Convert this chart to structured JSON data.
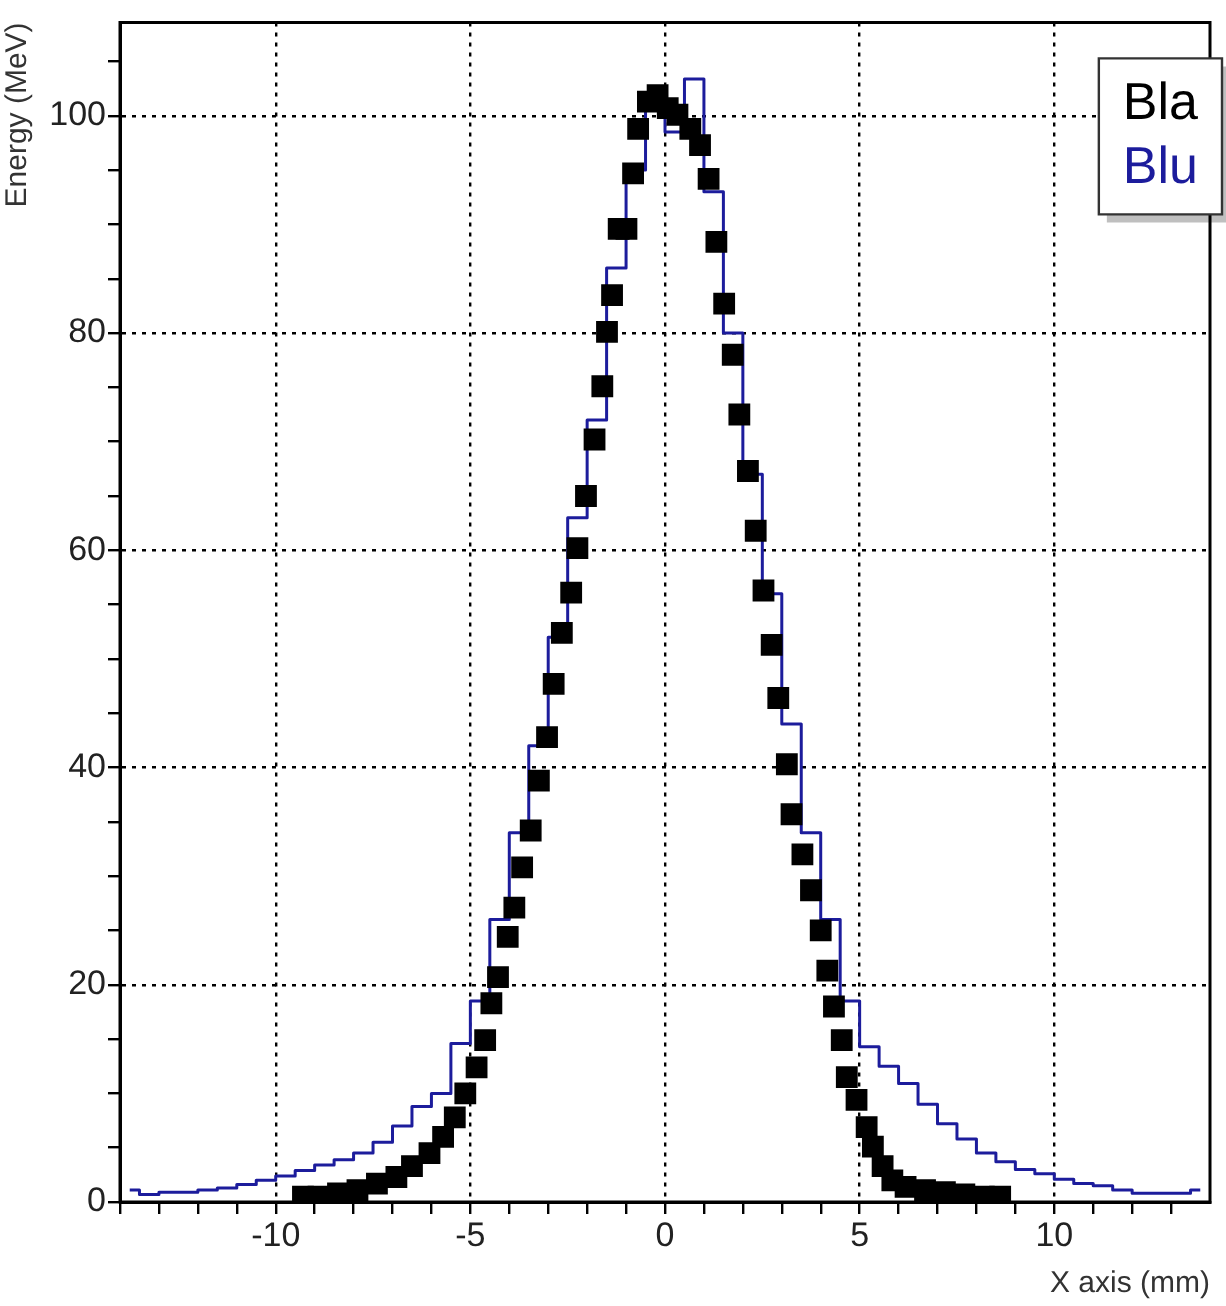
{
  "chart_data": {
    "type": "scatter",
    "xlabel": "X axis (mm)",
    "ylabel": "Energy (MeV)",
    "xlim": [
      -14,
      14
    ],
    "ylim": [
      0,
      108.6
    ],
    "xticks": [
      {
        "value": -14,
        "label": null
      },
      {
        "value": -13,
        "label": null
      },
      {
        "value": -12,
        "label": null
      },
      {
        "value": -11,
        "label": null
      },
      -10,
      {
        "value": -9,
        "label": null
      },
      {
        "value": -8,
        "label": null
      },
      {
        "value": -7,
        "label": null
      },
      {
        "value": -6,
        "label": null
      },
      -5,
      {
        "value": -4,
        "label": null
      },
      {
        "value": -3,
        "label": null
      },
      {
        "value": -2,
        "label": null
      },
      {
        "value": -1,
        "label": null
      },
      0,
      {
        "value": 1,
        "label": null
      },
      {
        "value": 2,
        "label": null
      },
      {
        "value": 3,
        "label": null
      },
      {
        "value": 4,
        "label": null
      },
      5,
      {
        "value": 6,
        "label": null
      },
      {
        "value": 7,
        "label": null
      },
      {
        "value": 8,
        "label": null
      },
      {
        "value": 9,
        "label": null
      },
      10,
      {
        "value": 11,
        "label": null
      },
      {
        "value": 12,
        "label": null
      },
      {
        "value": 13,
        "label": null
      }
    ],
    "yticks": [
      0,
      {
        "value": 5,
        "label": null
      },
      {
        "value": 10,
        "label": null
      },
      {
        "value": 15,
        "label": null
      },
      20,
      {
        "value": 25,
        "label": null
      },
      {
        "value": 30,
        "label": null
      },
      {
        "value": 35,
        "label": null
      },
      40,
      {
        "value": 45,
        "label": null
      },
      {
        "value": 50,
        "label": null
      },
      {
        "value": 55,
        "label": null
      },
      60,
      {
        "value": 65,
        "label": null
      },
      {
        "value": 70,
        "label": null
      },
      {
        "value": 75,
        "label": null
      },
      80,
      {
        "value": 85,
        "label": null
      },
      {
        "value": 90,
        "label": null
      },
      {
        "value": 95,
        "label": null
      },
      100,
      {
        "value": 105,
        "label": null
      }
    ],
    "grid": true,
    "legend": "top right",
    "series": [
      {
        "name": "Bla",
        "marker": "square",
        "color": "#000000",
        "x": [
          -9.3,
          -8.9,
          -8.4,
          -7.9,
          -7.4,
          -6.9,
          -6.5,
          -6.05,
          -5.7,
          -5.4,
          -5.13,
          -4.84,
          -4.62,
          -4.46,
          -4.29,
          -4.04,
          -3.87,
          -3.67,
          -3.45,
          -3.24,
          -3.03,
          -2.86,
          -2.65,
          -2.41,
          -2.25,
          -2.03,
          -1.81,
          -1.61,
          -1.49,
          -1.36,
          -1.19,
          -0.99,
          -0.82,
          -0.69,
          -0.44,
          -0.19,
          0.07,
          0.32,
          0.65,
          0.9,
          1.12,
          1.32,
          1.52,
          1.74,
          1.91,
          2.13,
          2.33,
          2.53,
          2.74,
          2.91,
          3.13,
          3.25,
          3.53,
          3.75,
          4.0,
          4.17,
          4.34,
          4.54,
          4.67,
          4.92,
          5.18,
          5.34,
          5.59,
          5.84,
          6.18,
          6.68,
          7.19,
          7.69,
          8.19,
          8.61
        ],
        "values": [
          0.5,
          0.5,
          0.8,
          1.1,
          1.7,
          2.3,
          3.3,
          4.5,
          6.0,
          7.8,
          10.0,
          12.4,
          14.9,
          18.3,
          20.7,
          24.4,
          27.1,
          30.8,
          34.2,
          38.8,
          42.8,
          47.7,
          52.4,
          56.1,
          60.2,
          65.0,
          70.2,
          75.1,
          80.1,
          83.5,
          89.6,
          89.6,
          94.7,
          98.8,
          101.3,
          101.9,
          100.7,
          100.1,
          98.8,
          97.3,
          94.2,
          88.4,
          82.7,
          78.0,
          72.5,
          67.3,
          61.8,
          56.3,
          51.3,
          46.4,
          40.3,
          35.7,
          32.0,
          28.7,
          25.0,
          21.3,
          18.0,
          14.9,
          11.5,
          9.4,
          6.9,
          5.1,
          3.3,
          2.0,
          1.4,
          1.1,
          0.9,
          0.7,
          0.5,
          0.5
        ]
      },
      {
        "name": "Blu",
        "type": "step",
        "marker": "none",
        "color": "#1c1c9c",
        "x": [
          -13.75,
          -13.25,
          -12.75,
          -12.25,
          -11.75,
          -11.25,
          -10.75,
          -10.25,
          -9.75,
          -9.25,
          -8.75,
          -8.25,
          -7.75,
          -7.25,
          -6.75,
          -6.25,
          -5.75,
          -5.25,
          -4.75,
          -4.25,
          -3.75,
          -3.25,
          -2.75,
          -2.25,
          -1.75,
          -1.25,
          -0.75,
          -0.25,
          0.25,
          0.75,
          1.25,
          1.75,
          2.25,
          2.75,
          3.25,
          3.75,
          4.25,
          4.75,
          5.25,
          5.75,
          6.25,
          6.75,
          7.25,
          7.75,
          8.25,
          8.75,
          9.25,
          9.75,
          10.25,
          10.75,
          11.25,
          11.75,
          12.25,
          12.75,
          13.25,
          13.75
        ],
        "values": [
          1.1,
          0.7,
          0.9,
          0.9,
          1.1,
          1.3,
          1.6,
          2.0,
          2.4,
          2.9,
          3.4,
          3.9,
          4.5,
          5.5,
          7.0,
          8.8,
          10.0,
          14.6,
          18.5,
          26,
          34,
          42,
          52,
          63,
          72,
          86,
          95,
          101,
          98.5,
          103.4,
          93,
          80,
          67,
          56,
          44,
          34,
          26,
          18.5,
          14.3,
          12.5,
          10.9,
          9.0,
          7.2,
          5.8,
          4.5,
          3.7,
          3.0,
          2.6,
          2.1,
          1.7,
          1.5,
          1.1,
          0.8,
          0.8,
          0.8,
          1.1
        ]
      }
    ]
  }
}
